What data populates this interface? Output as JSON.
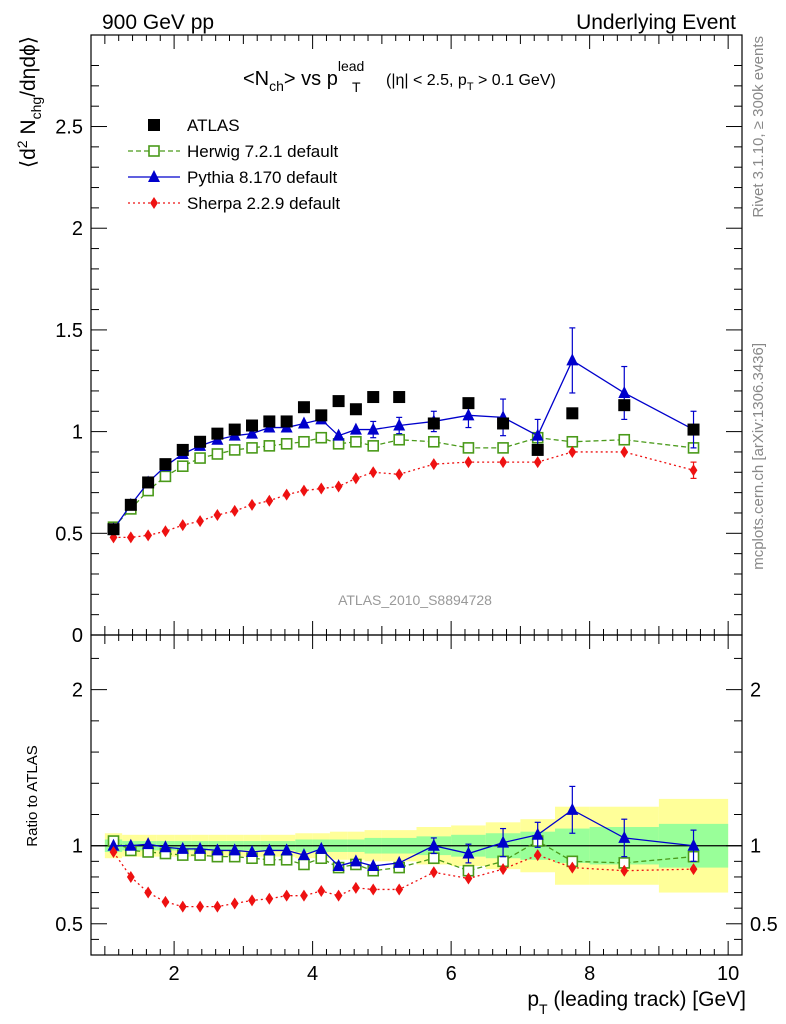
{
  "header": {
    "left": "900 GeV pp",
    "right": "Underlying Event"
  },
  "side_labels": {
    "rivet": "Rivet 3.1.10, ≥ 300k events",
    "mcplots": "mcplots.cern.ch [arXiv:1306.3436]"
  },
  "watermark": "ATLAS_2010_S8894728",
  "chart_data": [
    {
      "type": "scatter",
      "panel": "main",
      "title": "<N_ch> vs p_T^lead (|η| < 2.5, p_T > 0.1 GeV)",
      "title_parts": {
        "main": "<N",
        "sub1": "ch",
        "mid": "> vs p",
        "sup": "lead",
        "sub2": "T",
        "paren1": "(|η| < 2.5, p",
        "sub3": "T",
        "paren2": " > 0.1 GeV)"
      },
      "ylabel": "⟨d² N_chg/dηdϕ⟩",
      "ylabel_parts": {
        "a": "⟨d",
        "sup": "2",
        "b": " N",
        "sub": "chg",
        "c": "/dηdϕ⟩"
      },
      "xlim": [
        0.8,
        10.2
      ],
      "ylim": [
        0,
        2.95
      ],
      "yticks": [
        0,
        0.5,
        1,
        1.5,
        2,
        2.5
      ],
      "ytick_labels": [
        "0",
        "0.5",
        "1",
        "1.5",
        "2",
        "2.5"
      ],
      "legend_position": "top-left",
      "series": [
        {
          "name": "ATLAS",
          "color": "#000000",
          "marker": "square-filled",
          "line": "none",
          "x": [
            1.125,
            1.375,
            1.625,
            1.875,
            2.125,
            2.375,
            2.625,
            2.875,
            3.125,
            3.375,
            3.625,
            3.875,
            4.125,
            4.375,
            4.625,
            4.875,
            5.25,
            5.75,
            6.25,
            6.75,
            7.25,
            7.75,
            8.5,
            9.5
          ],
          "y": [
            0.52,
            0.64,
            0.75,
            0.84,
            0.91,
            0.95,
            0.99,
            1.01,
            1.03,
            1.05,
            1.05,
            1.12,
            1.08,
            1.15,
            1.11,
            1.17,
            1.17,
            1.04,
            1.14,
            1.04,
            0.91,
            1.09,
            1.13,
            1.01
          ]
        },
        {
          "name": "Herwig 7.2.1 default",
          "color": "#4a9a1a",
          "marker": "square-open",
          "line": "dashed",
          "x": [
            1.125,
            1.375,
            1.625,
            1.875,
            2.125,
            2.375,
            2.625,
            2.875,
            3.125,
            3.375,
            3.625,
            3.875,
            4.125,
            4.375,
            4.625,
            4.875,
            5.25,
            5.75,
            6.25,
            6.75,
            7.25,
            7.75,
            8.5,
            9.5
          ],
          "y": [
            0.53,
            0.62,
            0.71,
            0.78,
            0.83,
            0.87,
            0.89,
            0.91,
            0.92,
            0.93,
            0.94,
            0.95,
            0.97,
            0.94,
            0.95,
            0.93,
            0.96,
            0.95,
            0.92,
            0.92,
            0.97,
            0.95,
            0.96,
            0.92
          ],
          "err": [
            0.01,
            0.01,
            0.01,
            0.01,
            0.01,
            0.01,
            0.01,
            0.01,
            0.01,
            0.01,
            0.01,
            0.01,
            0.01,
            0.01,
            0.01,
            0.02,
            0.02,
            0.02,
            0.02,
            0.03,
            0.03,
            0.03,
            0.03,
            0.03
          ]
        },
        {
          "name": "Pythia 8.170 default",
          "color": "#0000cc",
          "marker": "triangle-filled",
          "line": "solid",
          "x": [
            1.125,
            1.375,
            1.625,
            1.875,
            2.125,
            2.375,
            2.625,
            2.875,
            3.125,
            3.375,
            3.625,
            3.875,
            4.125,
            4.375,
            4.625,
            4.875,
            5.25,
            5.75,
            6.25,
            6.75,
            7.25,
            7.75,
            8.5,
            9.5
          ],
          "y": [
            0.52,
            0.64,
            0.75,
            0.83,
            0.89,
            0.93,
            0.96,
            0.98,
            0.99,
            1.02,
            1.02,
            1.04,
            1.06,
            0.98,
            1.01,
            1.01,
            1.03,
            1.05,
            1.08,
            1.07,
            0.98,
            1.35,
            1.19,
            1.01
          ],
          "err": [
            0.01,
            0.01,
            0.01,
            0.01,
            0.01,
            0.01,
            0.01,
            0.01,
            0.01,
            0.01,
            0.02,
            0.02,
            0.02,
            0.03,
            0.03,
            0.04,
            0.04,
            0.05,
            0.06,
            0.09,
            0.08,
            0.16,
            0.13,
            0.09
          ]
        },
        {
          "name": "Sherpa 2.2.9 default",
          "color": "#ee1111",
          "marker": "diamond-filled",
          "line": "dotted",
          "x": [
            1.125,
            1.375,
            1.625,
            1.875,
            2.125,
            2.375,
            2.625,
            2.875,
            3.125,
            3.375,
            3.625,
            3.875,
            4.125,
            4.375,
            4.625,
            4.875,
            5.25,
            5.75,
            6.25,
            6.75,
            7.25,
            7.75,
            8.5,
            9.5
          ],
          "y": [
            0.48,
            0.48,
            0.49,
            0.51,
            0.54,
            0.56,
            0.59,
            0.61,
            0.64,
            0.66,
            0.69,
            0.71,
            0.72,
            0.73,
            0.77,
            0.8,
            0.79,
            0.84,
            0.85,
            0.85,
            0.85,
            0.9,
            0.9,
            0.81
          ],
          "err": [
            0.01,
            0.01,
            0.01,
            0.01,
            0.01,
            0.01,
            0.01,
            0.01,
            0.01,
            0.01,
            0.01,
            0.01,
            0.01,
            0.01,
            0.01,
            0.01,
            0.01,
            0.02,
            0.02,
            0.02,
            0.03,
            0.03,
            0.03,
            0.04
          ]
        }
      ]
    },
    {
      "type": "scatter",
      "panel": "ratio",
      "ylabel": "Ratio to ATLAS",
      "xlabel": "p_T (leading track) [GeV]",
      "xlabel_parts": {
        "a": "p",
        "sub": "T",
        "b": " (leading track) [GeV]"
      },
      "xlim": [
        0.8,
        10.2
      ],
      "ylim": [
        0.3,
        2.35
      ],
      "xticks": [
        2,
        4,
        6,
        8,
        10
      ],
      "xtick_labels": [
        "2",
        "4",
        "6",
        "8",
        "10"
      ],
      "yticks": [
        0.5,
        1,
        2
      ],
      "ytick_labels": [
        "0.5",
        "1",
        "2"
      ],
      "bins": [
        [
          1.0,
          1.25
        ],
        [
          1.25,
          1.5
        ],
        [
          1.5,
          1.75
        ],
        [
          1.75,
          2.0
        ],
        [
          2.0,
          2.25
        ],
        [
          2.25,
          2.5
        ],
        [
          2.5,
          2.75
        ],
        [
          2.75,
          3.0
        ],
        [
          3.0,
          3.25
        ],
        [
          3.25,
          3.5
        ],
        [
          3.5,
          3.75
        ],
        [
          3.75,
          4.0
        ],
        [
          4.0,
          4.25
        ],
        [
          4.25,
          4.5
        ],
        [
          4.5,
          4.75
        ],
        [
          4.75,
          5.0
        ],
        [
          5.0,
          5.5
        ],
        [
          5.5,
          6.0
        ],
        [
          6.0,
          6.5
        ],
        [
          6.5,
          7.0
        ],
        [
          7.0,
          7.5
        ],
        [
          7.5,
          8.0
        ],
        [
          8.0,
          9.0
        ],
        [
          9.0,
          10.0
        ]
      ],
      "band_inner": [
        0.04,
        0.03,
        0.03,
        0.03,
        0.03,
        0.03,
        0.03,
        0.03,
        0.03,
        0.03,
        0.03,
        0.04,
        0.04,
        0.04,
        0.04,
        0.05,
        0.05,
        0.06,
        0.07,
        0.08,
        0.09,
        0.11,
        0.12,
        0.14
      ],
      "band_outer": [
        0.08,
        0.07,
        0.07,
        0.07,
        0.07,
        0.07,
        0.07,
        0.07,
        0.07,
        0.07,
        0.07,
        0.08,
        0.08,
        0.09,
        0.09,
        0.1,
        0.1,
        0.12,
        0.13,
        0.15,
        0.17,
        0.25,
        0.25,
        0.3
      ],
      "band_inner_color": "#99ff99",
      "band_outer_color": "#ffff99",
      "series": [
        {
          "name": "Herwig 7.2.1 default",
          "color": "#4a9a1a",
          "marker": "square-open",
          "line": "dashed",
          "x": [
            1.125,
            1.375,
            1.625,
            1.875,
            2.125,
            2.375,
            2.625,
            2.875,
            3.125,
            3.375,
            3.625,
            3.875,
            4.125,
            4.375,
            4.625,
            4.875,
            5.25,
            5.75,
            6.25,
            6.75,
            7.25,
            7.75,
            8.5,
            9.5
          ],
          "y": [
            1.03,
            0.97,
            0.96,
            0.95,
            0.94,
            0.94,
            0.93,
            0.93,
            0.92,
            0.91,
            0.91,
            0.88,
            0.92,
            0.86,
            0.88,
            0.84,
            0.86,
            0.92,
            0.84,
            0.9,
            1.03,
            0.9,
            0.89,
            0.93
          ],
          "err": [
            0.01,
            0.01,
            0.01,
            0.01,
            0.01,
            0.01,
            0.01,
            0.01,
            0.01,
            0.01,
            0.01,
            0.01,
            0.01,
            0.01,
            0.01,
            0.02,
            0.02,
            0.02,
            0.02,
            0.03,
            0.04,
            0.03,
            0.03,
            0.04
          ]
        },
        {
          "name": "Pythia 8.170 default",
          "color": "#0000cc",
          "marker": "triangle-filled",
          "line": "solid",
          "x": [
            1.125,
            1.375,
            1.625,
            1.875,
            2.125,
            2.375,
            2.625,
            2.875,
            3.125,
            3.375,
            3.625,
            3.875,
            4.125,
            4.375,
            4.625,
            4.875,
            5.25,
            5.75,
            6.25,
            6.75,
            7.25,
            7.75,
            8.5,
            9.5
          ],
          "y": [
            1.0,
            1.0,
            1.01,
            0.99,
            0.98,
            0.98,
            0.97,
            0.97,
            0.96,
            0.97,
            0.97,
            0.94,
            0.98,
            0.87,
            0.9,
            0.87,
            0.89,
            1.0,
            0.95,
            1.02,
            1.07,
            1.23,
            1.05,
            1.0
          ],
          "err": [
            0.01,
            0.01,
            0.01,
            0.01,
            0.01,
            0.01,
            0.01,
            0.01,
            0.01,
            0.01,
            0.02,
            0.02,
            0.02,
            0.03,
            0.03,
            0.04,
            0.04,
            0.05,
            0.06,
            0.09,
            0.08,
            0.15,
            0.12,
            0.1
          ]
        },
        {
          "name": "Sherpa 2.2.9 default",
          "color": "#ee1111",
          "marker": "diamond-filled",
          "line": "dotted",
          "x": [
            1.125,
            1.375,
            1.625,
            1.875,
            2.125,
            2.375,
            2.625,
            2.875,
            3.125,
            3.375,
            3.625,
            3.875,
            4.125,
            4.375,
            4.625,
            4.875,
            5.25,
            5.75,
            6.25,
            6.75,
            7.25,
            7.75,
            8.5,
            9.5
          ],
          "y": [
            0.96,
            0.8,
            0.7,
            0.64,
            0.61,
            0.61,
            0.61,
            0.63,
            0.65,
            0.66,
            0.68,
            0.68,
            0.71,
            0.68,
            0.73,
            0.72,
            0.72,
            0.83,
            0.79,
            0.85,
            0.94,
            0.86,
            0.84,
            0.85
          ],
          "err": [
            0.01,
            0.01,
            0.01,
            0.01,
            0.01,
            0.01,
            0.01,
            0.01,
            0.01,
            0.01,
            0.01,
            0.01,
            0.01,
            0.01,
            0.01,
            0.01,
            0.01,
            0.02,
            0.02,
            0.02,
            0.03,
            0.03,
            0.03,
            0.04
          ]
        }
      ]
    }
  ]
}
